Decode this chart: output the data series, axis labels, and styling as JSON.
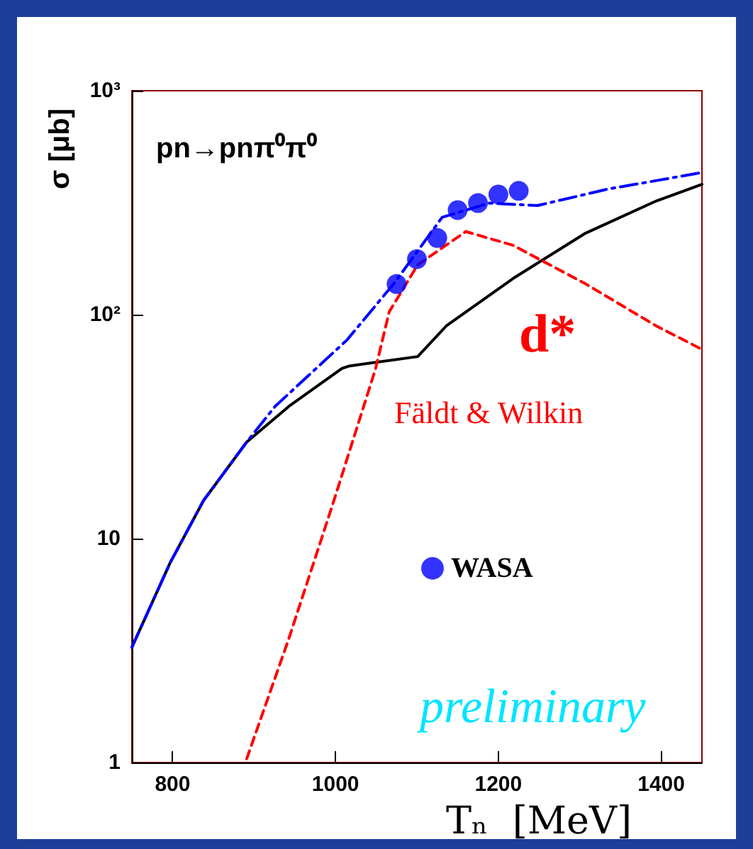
{
  "chart_data": {
    "type": "line",
    "xlabel": "Tₙ  [MeV]",
    "ylabel": "σ [μb]",
    "log": "y",
    "xlim": [
      750,
      1450
    ],
    "xticks": [
      800,
      1000,
      1200,
      1400
    ],
    "ylim": [
      1,
      1000
    ],
    "yticks": [
      1,
      10,
      {
        "value": 100,
        "label": "10²"
      },
      {
        "value": 1000,
        "label": "10³"
      }
    ],
    "grid": false,
    "legend": "center",
    "annotations": [
      "pn→pnπ⁰π⁰",
      "d*",
      "Fäldt & Wilkin",
      "preliminary"
    ],
    "series": [
      {
        "color": "#000000",
        "line_style": "solid",
        "marker": "none",
        "x": [
          750,
          797,
          838,
          891,
          943,
          1008,
          1017,
          1101,
          1136,
          1218,
          1306,
          1394,
          1450
        ],
        "values": [
          3.27,
          7.8,
          14.8,
          27,
          39,
          57.5,
          59,
          65,
          89,
          145,
          230,
          322,
          382
        ]
      },
      {
        "color": "#0000ff",
        "line_style": "dashdot",
        "marker": "none",
        "x": [
          750,
          797,
          838,
          891,
          926,
          1014,
          1072,
          1131,
          1189,
          1248,
          1335,
          1450
        ],
        "values": [
          3.27,
          7.8,
          14.8,
          27,
          39,
          77,
          138,
          272,
          315,
          307,
          364,
          431
        ]
      },
      {
        "color": "#ff0000",
        "line_style": "dashed",
        "marker": "none",
        "x": [
          891,
          943,
          996,
          1049,
          1066,
          1101,
          1160,
          1218,
          1306,
          1394,
          1450
        ],
        "values": [
          1.04,
          3.6,
          14,
          57,
          103,
          167,
          235,
          204,
          138,
          89,
          70
        ]
      },
      {
        "type": "scatter",
        "name": "WASA",
        "color": "#0000ff",
        "marker": "circle",
        "x": [
          1075,
          1100,
          1125,
          1150,
          1175,
          1200,
          1225
        ],
        "values": [
          137,
          177,
          220,
          293,
          315,
          344,
          357
        ]
      }
    ]
  }
}
